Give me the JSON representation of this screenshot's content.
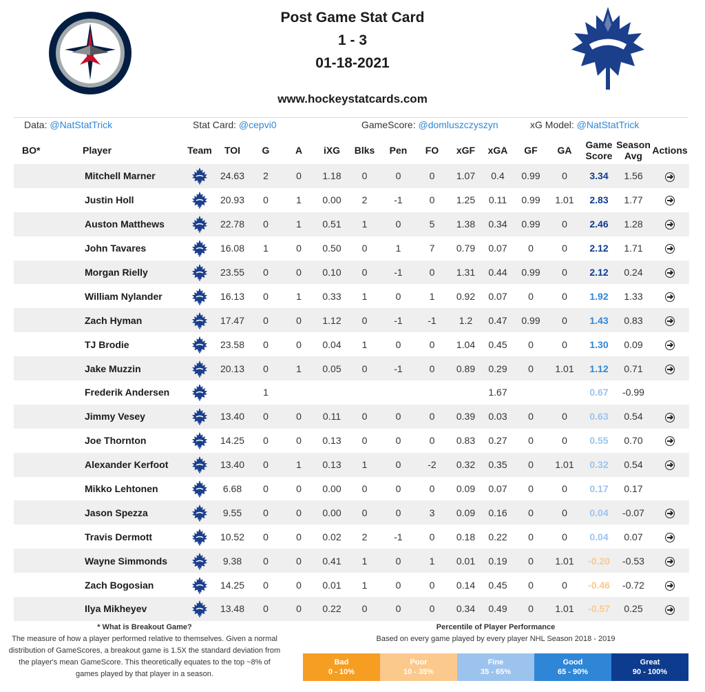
{
  "header": {
    "title": "Post Game Stat Card",
    "score": "1 - 3",
    "date": "01-18-2021",
    "website": "www.hockeystatcards.com"
  },
  "credits": {
    "data_label": "Data:",
    "data_link": "@NatStatTrick",
    "card_label": "Stat Card:",
    "card_link": "@cepvi0",
    "gamescore_label": "GameScore:",
    "gamescore_link": "@domluszczyszyn",
    "xg_label": "xG Model:",
    "xg_link": "@NatStatTrick"
  },
  "columns": {
    "bo": "BO*",
    "player": "Player",
    "team": "Team",
    "toi": "TOI",
    "g": "G",
    "a": "A",
    "ixg": "iXG",
    "blks": "Blks",
    "pen": "Pen",
    "fo": "FO",
    "xgf": "xGF",
    "xga": "xGA",
    "gf": "GF",
    "ga": "GA",
    "gamescore_line1": "Game",
    "gamescore_line2": "Score",
    "season_line1": "Season",
    "season_line2": "Avg",
    "actions": "Actions"
  },
  "colors": {
    "gs_great": "#0d3b8e",
    "gs_good": "#2f86d6",
    "gs_fine": "#9cc3ee",
    "gs_poor": "#fbc98c",
    "gs_bad": "#f59e22",
    "leafs_blue": "#1b3f8b",
    "jets_navy": "#041e42"
  },
  "rows": [
    {
      "player": "Mitchell Marner",
      "toi": "24.63",
      "g": "2",
      "a": "0",
      "ixg": "1.18",
      "blks": "0",
      "pen": "0",
      "fo": "0",
      "xgf": "1.07",
      "xga": "0.4",
      "gf": "0.99",
      "ga": "0",
      "gs": "3.34",
      "season": "1.56",
      "tier": "great",
      "action": true
    },
    {
      "player": "Justin Holl",
      "toi": "20.93",
      "g": "0",
      "a": "1",
      "ixg": "0.00",
      "blks": "2",
      "pen": "-1",
      "fo": "0",
      "xgf": "1.25",
      "xga": "0.11",
      "gf": "0.99",
      "ga": "1.01",
      "gs": "2.83",
      "season": "1.77",
      "tier": "great",
      "action": true
    },
    {
      "player": "Auston Matthews",
      "toi": "22.78",
      "g": "0",
      "a": "1",
      "ixg": "0.51",
      "blks": "1",
      "pen": "0",
      "fo": "5",
      "xgf": "1.38",
      "xga": "0.34",
      "gf": "0.99",
      "ga": "0",
      "gs": "2.46",
      "season": "1.28",
      "tier": "great",
      "action": true
    },
    {
      "player": "John Tavares",
      "toi": "16.08",
      "g": "1",
      "a": "0",
      "ixg": "0.50",
      "blks": "0",
      "pen": "1",
      "fo": "7",
      "xgf": "0.79",
      "xga": "0.07",
      "gf": "0",
      "ga": "0",
      "gs": "2.12",
      "season": "1.71",
      "tier": "great",
      "action": true
    },
    {
      "player": "Morgan Rielly",
      "toi": "23.55",
      "g": "0",
      "a": "0",
      "ixg": "0.10",
      "blks": "0",
      "pen": "-1",
      "fo": "0",
      "xgf": "1.31",
      "xga": "0.44",
      "gf": "0.99",
      "ga": "0",
      "gs": "2.12",
      "season": "0.24",
      "tier": "great",
      "action": true
    },
    {
      "player": "William Nylander",
      "toi": "16.13",
      "g": "0",
      "a": "1",
      "ixg": "0.33",
      "blks": "1",
      "pen": "0",
      "fo": "1",
      "xgf": "0.92",
      "xga": "0.07",
      "gf": "0",
      "ga": "0",
      "gs": "1.92",
      "season": "1.33",
      "tier": "good",
      "action": true
    },
    {
      "player": "Zach Hyman",
      "toi": "17.47",
      "g": "0",
      "a": "0",
      "ixg": "1.12",
      "blks": "0",
      "pen": "-1",
      "fo": "-1",
      "xgf": "1.2",
      "xga": "0.47",
      "gf": "0.99",
      "ga": "0",
      "gs": "1.43",
      "season": "0.83",
      "tier": "good",
      "action": true
    },
    {
      "player": "TJ Brodie",
      "toi": "23.58",
      "g": "0",
      "a": "0",
      "ixg": "0.04",
      "blks": "1",
      "pen": "0",
      "fo": "0",
      "xgf": "1.04",
      "xga": "0.45",
      "gf": "0",
      "ga": "0",
      "gs": "1.30",
      "season": "0.09",
      "tier": "good",
      "action": true
    },
    {
      "player": "Jake Muzzin",
      "toi": "20.13",
      "g": "0",
      "a": "1",
      "ixg": "0.05",
      "blks": "0",
      "pen": "-1",
      "fo": "0",
      "xgf": "0.89",
      "xga": "0.29",
      "gf": "0",
      "ga": "1.01",
      "gs": "1.12",
      "season": "0.71",
      "tier": "good",
      "action": true
    },
    {
      "player": "Frederik Andersen",
      "toi": "",
      "g": "1",
      "a": "",
      "ixg": "",
      "blks": "",
      "pen": "",
      "fo": "",
      "xgf": "",
      "xga": "1.67",
      "gf": "",
      "ga": "",
      "gs": "0.67",
      "season": "-0.99",
      "tier": "fine",
      "action": false
    },
    {
      "player": "Jimmy Vesey",
      "toi": "13.40",
      "g": "0",
      "a": "0",
      "ixg": "0.11",
      "blks": "0",
      "pen": "0",
      "fo": "0",
      "xgf": "0.39",
      "xga": "0.03",
      "gf": "0",
      "ga": "0",
      "gs": "0.63",
      "season": "0.54",
      "tier": "fine",
      "action": true
    },
    {
      "player": "Joe Thornton",
      "toi": "14.25",
      "g": "0",
      "a": "0",
      "ixg": "0.13",
      "blks": "0",
      "pen": "0",
      "fo": "0",
      "xgf": "0.83",
      "xga": "0.27",
      "gf": "0",
      "ga": "0",
      "gs": "0.55",
      "season": "0.70",
      "tier": "fine",
      "action": true
    },
    {
      "player": "Alexander Kerfoot",
      "toi": "13.40",
      "g": "0",
      "a": "1",
      "ixg": "0.13",
      "blks": "1",
      "pen": "0",
      "fo": "-2",
      "xgf": "0.32",
      "xga": "0.35",
      "gf": "0",
      "ga": "1.01",
      "gs": "0.32",
      "season": "0.54",
      "tier": "fine",
      "action": true
    },
    {
      "player": "Mikko Lehtonen",
      "toi": "6.68",
      "g": "0",
      "a": "0",
      "ixg": "0.00",
      "blks": "0",
      "pen": "0",
      "fo": "0",
      "xgf": "0.09",
      "xga": "0.07",
      "gf": "0",
      "ga": "0",
      "gs": "0.17",
      "season": "0.17",
      "tier": "fine",
      "action": false
    },
    {
      "player": "Jason Spezza",
      "toi": "9.55",
      "g": "0",
      "a": "0",
      "ixg": "0.00",
      "blks": "0",
      "pen": "0",
      "fo": "3",
      "xgf": "0.09",
      "xga": "0.16",
      "gf": "0",
      "ga": "0",
      "gs": "0.04",
      "season": "-0.07",
      "tier": "fine",
      "action": true
    },
    {
      "player": "Travis Dermott",
      "toi": "10.52",
      "g": "0",
      "a": "0",
      "ixg": "0.02",
      "blks": "2",
      "pen": "-1",
      "fo": "0",
      "xgf": "0.18",
      "xga": "0.22",
      "gf": "0",
      "ga": "0",
      "gs": "0.04",
      "season": "0.07",
      "tier": "fine",
      "action": true
    },
    {
      "player": "Wayne Simmonds",
      "toi": "9.38",
      "g": "0",
      "a": "0",
      "ixg": "0.41",
      "blks": "1",
      "pen": "0",
      "fo": "1",
      "xgf": "0.01",
      "xga": "0.19",
      "gf": "0",
      "ga": "1.01",
      "gs": "-0.20",
      "season": "-0.53",
      "tier": "poor",
      "action": true
    },
    {
      "player": "Zach Bogosian",
      "toi": "14.25",
      "g": "0",
      "a": "0",
      "ixg": "0.01",
      "blks": "1",
      "pen": "0",
      "fo": "0",
      "xgf": "0.14",
      "xga": "0.45",
      "gf": "0",
      "ga": "0",
      "gs": "-0.46",
      "season": "-0.72",
      "tier": "poor",
      "action": true
    },
    {
      "player": "Ilya Mikheyev",
      "toi": "13.48",
      "g": "0",
      "a": "0",
      "ixg": "0.22",
      "blks": "0",
      "pen": "0",
      "fo": "0",
      "xgf": "0.34",
      "xga": "0.49",
      "gf": "0",
      "ga": "1.01",
      "gs": "-0.57",
      "season": "0.25",
      "tier": "poor",
      "action": true
    }
  ],
  "footer_left": {
    "heading": "* What is Breakout Game?",
    "text": "The measure of how a player performed relative to themselves. Given a normal distribution of GameScores, a breakout game is 1.5X the standard deviation from the player's mean GameScore. This theoretically equates to the top ~8% of games played by that player in a season."
  },
  "footer_right": {
    "heading": "Percentile of Player Performance",
    "subheading": "Based on every game played by every player NHL Season 2018 - 2019"
  },
  "legend": [
    {
      "label": "Bad",
      "range": "0 - 10%",
      "color": "#f59e22"
    },
    {
      "label": "Poor",
      "range": "10 - 35%",
      "color": "#fbc98c"
    },
    {
      "label": "Fine",
      "range": "35 - 65%",
      "color": "#9cc3ee"
    },
    {
      "label": "Good",
      "range": "65 - 90%",
      "color": "#2f86d6"
    },
    {
      "label": "Great",
      "range": "90 - 100%",
      "color": "#0d3b8e"
    }
  ]
}
